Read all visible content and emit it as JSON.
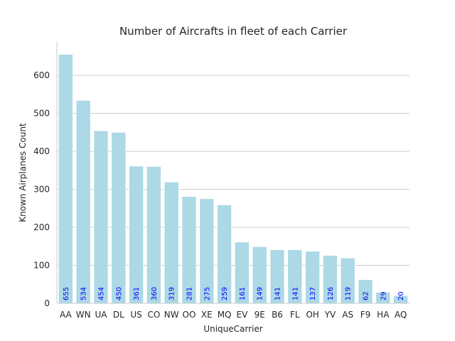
{
  "chart_data": {
    "type": "bar",
    "title": "Number of Aircrafts in fleet of each Carrier",
    "xlabel": "UniqueCarrier",
    "ylabel": "Known Airplanes Count",
    "categories": [
      "AA",
      "WN",
      "UA",
      "DL",
      "US",
      "CO",
      "NW",
      "OO",
      "XE",
      "MQ",
      "EV",
      "9E",
      "B6",
      "FL",
      "OH",
      "YV",
      "AS",
      "F9",
      "HA",
      "AQ"
    ],
    "values": [
      655,
      534,
      454,
      450,
      361,
      360,
      319,
      281,
      275,
      259,
      161,
      149,
      141,
      141,
      137,
      126,
      119,
      62,
      29,
      20
    ],
    "ylim": [
      0,
      690
    ],
    "yticks": [
      0,
      100,
      200,
      300,
      400,
      500,
      600
    ],
    "grid": true,
    "bar_color": "#add8e6",
    "label_color": "#0000ff"
  }
}
